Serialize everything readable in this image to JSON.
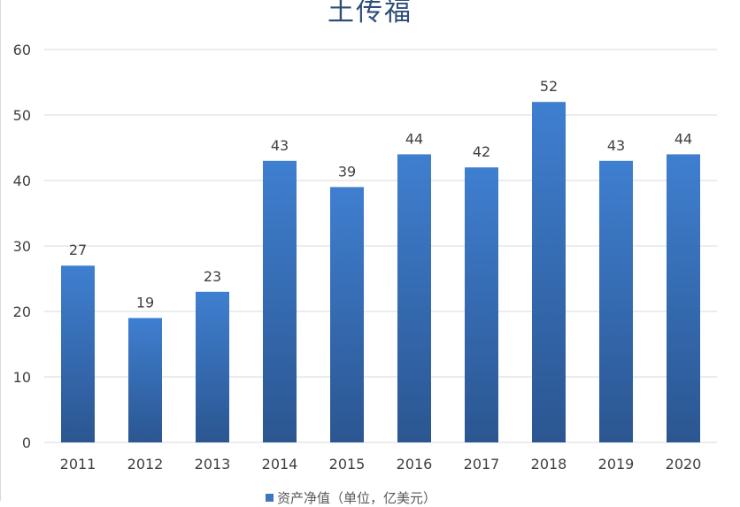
{
  "chart_data": {
    "type": "bar",
    "title": "土传福",
    "categories": [
      "2011",
      "2012",
      "2013",
      "2014",
      "2015",
      "2016",
      "2017",
      "2018",
      "2019",
      "2020"
    ],
    "series": [
      {
        "name": "资产净值（单位，亿美元）",
        "values": [
          27,
          19,
          23,
          43,
          39,
          44,
          42,
          52,
          43,
          44
        ]
      }
    ],
    "ylim": [
      0,
      60
    ],
    "yticks": [
      0,
      10,
      20,
      30,
      40,
      50,
      60
    ],
    "grid": true,
    "data_labels": true,
    "legend_position": "bottom",
    "colors": {
      "bar_top": "#3f7fd0",
      "bar_bottom": "#2b5691",
      "grid": "#d9d9d9",
      "text": "#404040",
      "title": "#2f4f7a"
    }
  }
}
